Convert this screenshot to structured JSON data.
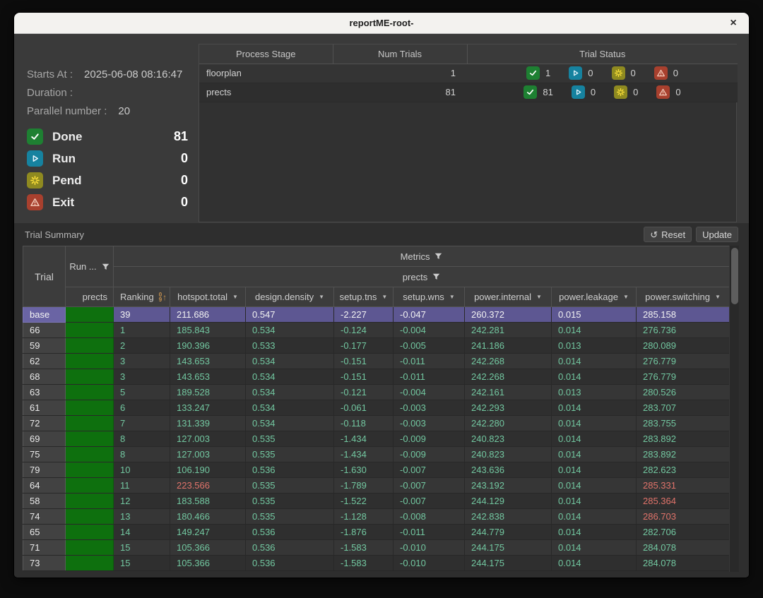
{
  "window": {
    "title": "reportME-root-",
    "close_label": "×"
  },
  "run_info": {
    "starts_at_label": "Starts At :",
    "starts_at_value": "2025-06-08 08:16:47",
    "duration_label": "Duration :",
    "duration_value": "",
    "parallel_label": "Parallel number :",
    "parallel_value": "20",
    "statuses": [
      {
        "type": "done",
        "icon": "check-icon",
        "label": "Done",
        "count": "81"
      },
      {
        "type": "run",
        "icon": "play-icon",
        "label": "Run",
        "count": "0"
      },
      {
        "type": "pend",
        "icon": "spinner-icon",
        "label": "Pend",
        "count": "0"
      },
      {
        "type": "exit",
        "icon": "warning-icon",
        "label": "Exit",
        "count": "0"
      }
    ]
  },
  "stage_table": {
    "headers": [
      "Process Stage",
      "Num Trials",
      "Trial Status"
    ],
    "rows": [
      {
        "stage": "floorplan",
        "num_trials": "1",
        "statuses": [
          {
            "type": "done",
            "icon": "check-icon",
            "count": "1"
          },
          {
            "type": "run",
            "icon": "play-icon",
            "count": "0"
          },
          {
            "type": "pend",
            "icon": "spinner-icon",
            "count": "0"
          },
          {
            "type": "exit",
            "icon": "warning-icon",
            "count": "0"
          }
        ]
      },
      {
        "stage": "prects",
        "num_trials": "81",
        "statuses": [
          {
            "type": "done",
            "icon": "check-icon",
            "count": "81"
          },
          {
            "type": "run",
            "icon": "play-icon",
            "count": "0"
          },
          {
            "type": "pend",
            "icon": "spinner-icon",
            "count": "0"
          },
          {
            "type": "exit",
            "icon": "warning-icon",
            "count": "0"
          }
        ]
      }
    ]
  },
  "trial_summary": {
    "title": "Trial Summary",
    "reset_label": "Reset",
    "update_label": "Update",
    "header": {
      "trial": "Trial",
      "run": "Run ...",
      "run_sub": "prects",
      "metrics": "Metrics",
      "stage": "prects",
      "columns": [
        "Ranking",
        "hotspot.total",
        "design.density",
        "setup.tns",
        "setup.wns",
        "power.internal",
        "power.leakage",
        "power.switching"
      ]
    },
    "rows": [
      {
        "trial": "base",
        "highlight": true,
        "cells": [
          "39",
          "211.686",
          "0.547",
          "-2.227",
          "-0.047",
          "260.372",
          "0.015",
          "285.158"
        ],
        "red": []
      },
      {
        "trial": "66",
        "highlight": false,
        "cells": [
          "1",
          "185.843",
          "0.534",
          "-0.124",
          "-0.004",
          "242.281",
          "0.014",
          "276.736"
        ],
        "red": []
      },
      {
        "trial": "59",
        "highlight": false,
        "cells": [
          "2",
          "190.396",
          "0.533",
          "-0.177",
          "-0.005",
          "241.186",
          "0.013",
          "280.089"
        ],
        "red": []
      },
      {
        "trial": "62",
        "highlight": false,
        "cells": [
          "3",
          "143.653",
          "0.534",
          "-0.151",
          "-0.011",
          "242.268",
          "0.014",
          "276.779"
        ],
        "red": []
      },
      {
        "trial": "68",
        "highlight": false,
        "cells": [
          "3",
          "143.653",
          "0.534",
          "-0.151",
          "-0.011",
          "242.268",
          "0.014",
          "276.779"
        ],
        "red": []
      },
      {
        "trial": "63",
        "highlight": false,
        "cells": [
          "5",
          "189.528",
          "0.534",
          "-0.121",
          "-0.004",
          "242.161",
          "0.013",
          "280.526"
        ],
        "red": []
      },
      {
        "trial": "61",
        "highlight": false,
        "cells": [
          "6",
          "133.247",
          "0.534",
          "-0.061",
          "-0.003",
          "242.293",
          "0.014",
          "283.707"
        ],
        "red": []
      },
      {
        "trial": "72",
        "highlight": false,
        "cells": [
          "7",
          "131.339",
          "0.534",
          "-0.118",
          "-0.003",
          "242.280",
          "0.014",
          "283.755"
        ],
        "red": []
      },
      {
        "trial": "69",
        "highlight": false,
        "cells": [
          "8",
          "127.003",
          "0.535",
          "-1.434",
          "-0.009",
          "240.823",
          "0.014",
          "283.892"
        ],
        "red": []
      },
      {
        "trial": "75",
        "highlight": false,
        "cells": [
          "8",
          "127.003",
          "0.535",
          "-1.434",
          "-0.009",
          "240.823",
          "0.014",
          "283.892"
        ],
        "red": []
      },
      {
        "trial": "79",
        "highlight": false,
        "cells": [
          "10",
          "106.190",
          "0.536",
          "-1.630",
          "-0.007",
          "243.636",
          "0.014",
          "282.623"
        ],
        "red": []
      },
      {
        "trial": "64",
        "highlight": false,
        "cells": [
          "11",
          "223.566",
          "0.535",
          "-1.789",
          "-0.007",
          "243.192",
          "0.014",
          "285.331"
        ],
        "red": [
          1,
          7
        ]
      },
      {
        "trial": "58",
        "highlight": false,
        "cells": [
          "12",
          "183.588",
          "0.535",
          "-1.522",
          "-0.007",
          "244.129",
          "0.014",
          "285.364"
        ],
        "red": [
          7
        ]
      },
      {
        "trial": "74",
        "highlight": false,
        "cells": [
          "13",
          "180.466",
          "0.535",
          "-1.128",
          "-0.008",
          "242.838",
          "0.014",
          "286.703"
        ],
        "red": [
          7
        ]
      },
      {
        "trial": "65",
        "highlight": false,
        "cells": [
          "14",
          "149.247",
          "0.536",
          "-1.876",
          "-0.011",
          "244.779",
          "0.014",
          "282.706"
        ],
        "red": []
      },
      {
        "trial": "71",
        "highlight": false,
        "cells": [
          "15",
          "105.366",
          "0.536",
          "-1.583",
          "-0.010",
          "244.175",
          "0.014",
          "284.078"
        ],
        "red": []
      },
      {
        "trial": "73",
        "highlight": false,
        "cells": [
          "15",
          "105.366",
          "0.536",
          "-1.583",
          "-0.010",
          "244.175",
          "0.014",
          "284.078"
        ],
        "red": []
      }
    ]
  },
  "colors": {
    "done_badge": "#1e8032",
    "run_badge": "#16829f",
    "pend_badge": "#8f8a20",
    "exit_badge": "#a8402e",
    "highlight_row": "#5d5792",
    "run_pass_cell": "#0e700e",
    "metric_text": "#72c7a0",
    "alert_text": "#e0736a"
  }
}
